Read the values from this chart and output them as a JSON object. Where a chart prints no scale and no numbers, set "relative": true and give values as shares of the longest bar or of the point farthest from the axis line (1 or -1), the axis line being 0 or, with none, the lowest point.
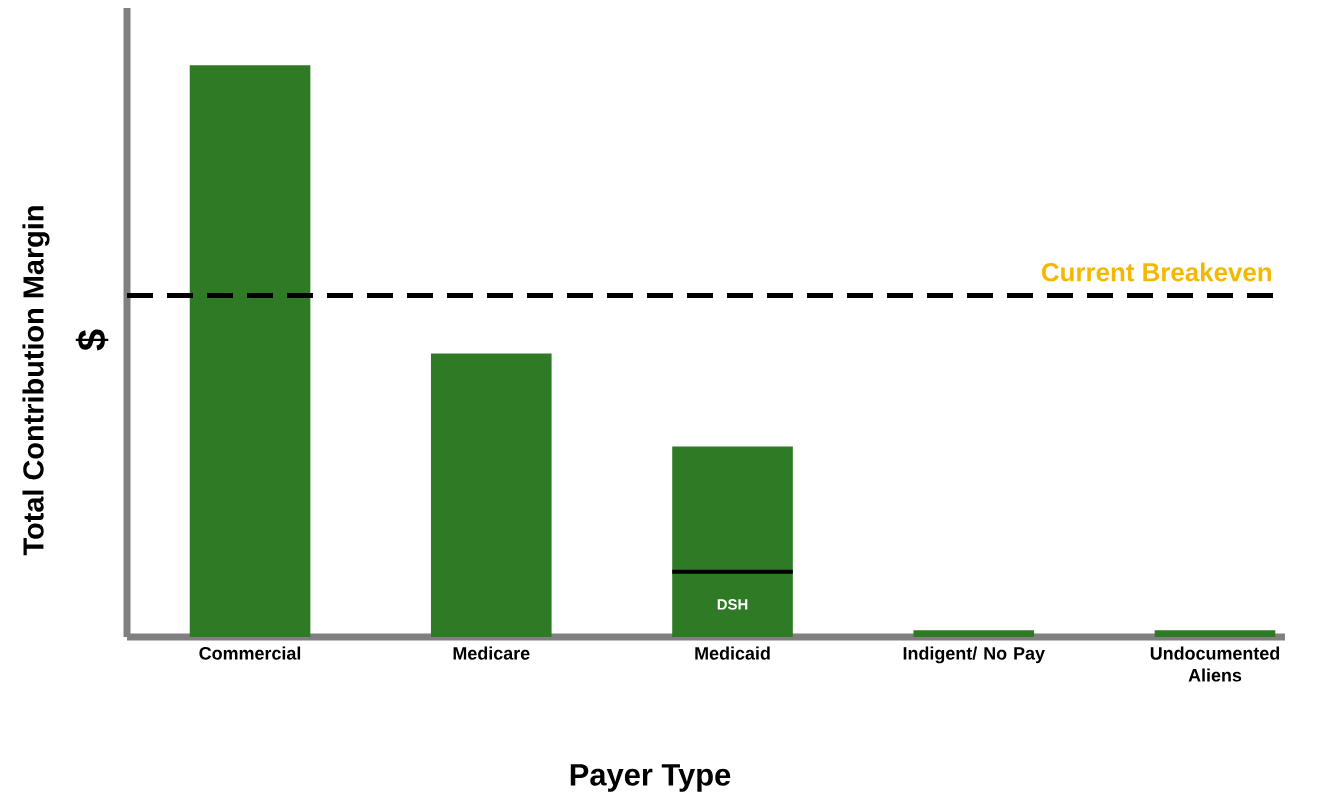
{
  "chart_data": {
    "type": "bar",
    "relative": true,
    "xlabel": "Payer Type",
    "ylabel": "Total Contribution Margin",
    "categories": [
      "Commercial",
      "Medicare",
      "Medicaid",
      "Indigent/ No Pay",
      "Undocumented Aliens"
    ],
    "stacked": true,
    "series": [
      {
        "color": "#2f7a25",
        "values": [
          1,
          0.496,
          0.114,
          0.012,
          0.012
        ]
      },
      {
        "color": "#2f7a25",
        "values": [
          null,
          null,
          0.219,
          null,
          null
        ]
      }
    ],
    "ref_lines": [
      {
        "axis": "y",
        "value": 0.597,
        "label": "Current Breakeven",
        "color": "#000000",
        "line_style": "dashed"
      }
    ],
    "annotations": [
      "$",
      "DSH"
    ]
  }
}
